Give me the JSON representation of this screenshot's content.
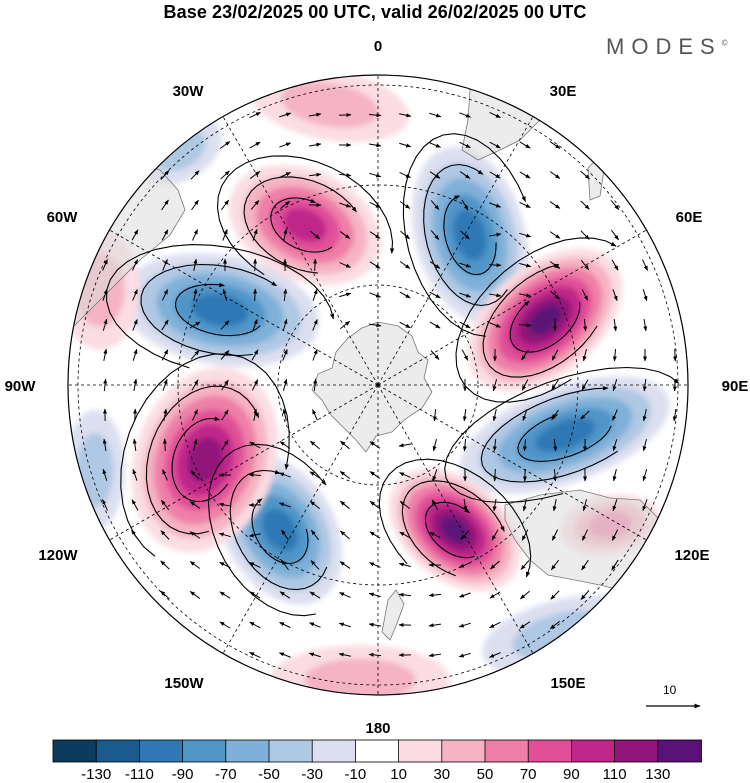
{
  "title": "Base 23/02/2025 00 UTC, valid 26/02/2025 00 UTC",
  "brand": "MODES",
  "brand_mark": "©",
  "map": {
    "projection": "south-polar-stereographic",
    "longitude_labels": {
      "lon_0": "0",
      "lon_30e": "30E",
      "lon_60e": "60E",
      "lon_90e": "90E",
      "lon_120e": "120E",
      "lon_150e": "150E",
      "lon_180": "180",
      "lon_150w": "150W",
      "lon_120w": "120W",
      "lon_90w": "90W",
      "lon_60w": "60W",
      "lon_30w": "30W"
    },
    "vector_reference": "10"
  },
  "colorbar": {
    "colors": [
      "#0d3b5e",
      "#1a5a8c",
      "#2f78b5",
      "#4f95c8",
      "#7fb0d8",
      "#afc8e3",
      "#dcdff0",
      "#ffffff",
      "#fbdde3",
      "#f5b3c3",
      "#ee7fa7",
      "#e04f98",
      "#c02589",
      "#91147a",
      "#5b1278"
    ],
    "tick_labels": [
      "-130",
      "-110",
      "-90",
      "-70",
      "-50",
      "-30",
      "-10",
      "10",
      "30",
      "50",
      "70",
      "90",
      "110",
      "130"
    ]
  }
}
